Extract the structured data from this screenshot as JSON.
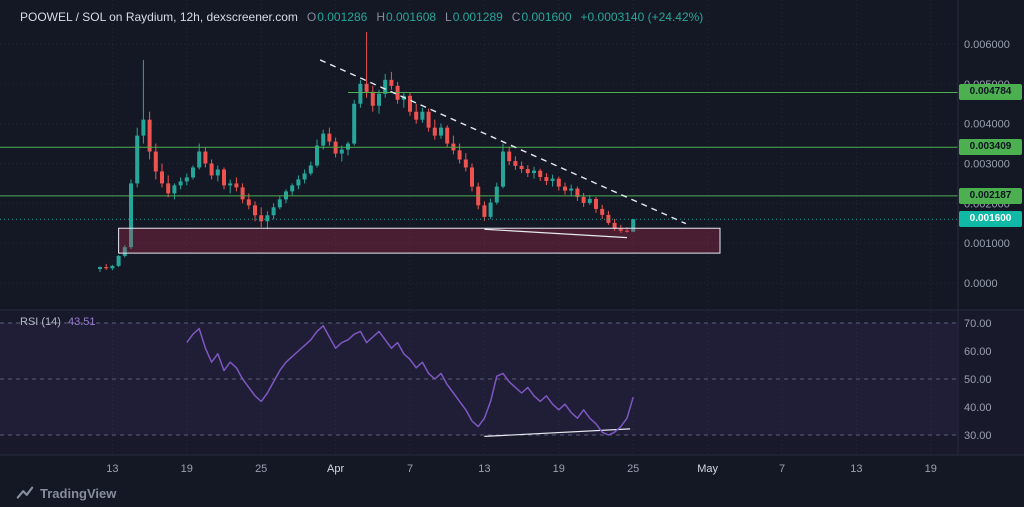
{
  "header": {
    "title": "POOWEL / SOL on Raydium, 12h, dexscreener.com",
    "ohlc": {
      "o_label": "O",
      "o": "0.001286",
      "h_label": "H",
      "h": "0.001608",
      "l_label": "L",
      "l": "0.001289",
      "c_label": "C",
      "c": "0.001600",
      "change": "+0.0003140 (+24.42%)"
    }
  },
  "rsi_header": {
    "label": "RSI (14)",
    "value": "43.51"
  },
  "branding": {
    "logo_text": "TradingView"
  },
  "colors": {
    "up": "#26a69a",
    "down": "#ef5350",
    "line_green": "#4caf50",
    "current_badge": "#10b8a6",
    "rsi_line": "#7e57c2",
    "rsi_value": "#9b7dd4",
    "drawing": "#e6e9f2",
    "box_fill": "rgba(199,48,84,0.30)",
    "grid": "rgba(154,164,190,0.10)",
    "axis_text": "#9aa0ad",
    "axis_text_major": "#d4d8e1",
    "separator": "#262b3b",
    "rsi_pane_tint": "rgba(126,87,194,0.05)",
    "rsi_band_fill": "rgba(126,87,194,0.07)",
    "rsi_level": "#5a5f78",
    "badge_text_dark": "#0e1420",
    "badge_text_light": "#ffffff",
    "ohlc_value": "#26a69a",
    "change": "#26a69a"
  },
  "chart_data": {
    "type": "candlestick",
    "title": "POOWEL / SOL on Raydium, 12h, dexscreener.com",
    "interval": "12h",
    "ylim": [
      0,
      0.0063
    ],
    "rsi_ylim": [
      30,
      70
    ],
    "price_axis_ticks": [
      {
        "label": "0.006000",
        "price": 0.006
      },
      {
        "label": "0.005000",
        "price": 0.005
      },
      {
        "label": "0.004000",
        "price": 0.004
      },
      {
        "label": "0.003000",
        "price": 0.003
      },
      {
        "label": "0.002000",
        "price": 0.002
      },
      {
        "label": "0.001000",
        "price": 0.001
      },
      {
        "label": "0.0000",
        "price": 0
      }
    ],
    "rsi_axis_ticks": [
      {
        "label": "70.00",
        "value": 70,
        "line": true
      },
      {
        "label": "60.00",
        "value": 60,
        "line": false
      },
      {
        "label": "50.00",
        "value": 50,
        "line": true
      },
      {
        "label": "40.00",
        "value": 40,
        "line": false
      },
      {
        "label": "30.00",
        "value": 30,
        "line": true
      }
    ],
    "time_axis_ticks": [
      {
        "label": "13",
        "index": 2,
        "major": false
      },
      {
        "label": "19",
        "index": 14,
        "major": false
      },
      {
        "label": "25",
        "index": 26,
        "major": false
      },
      {
        "label": "Apr",
        "index": 38,
        "major": true
      },
      {
        "label": "7",
        "index": 50,
        "major": false
      },
      {
        "label": "13",
        "index": 62,
        "major": false
      },
      {
        "label": "19",
        "index": 74,
        "major": false
      },
      {
        "label": "25",
        "index": 86,
        "major": false
      },
      {
        "label": "May",
        "index": 98,
        "major": true
      },
      {
        "label": "7",
        "index": 110,
        "major": false
      },
      {
        "label": "13",
        "index": 122,
        "major": false
      },
      {
        "label": "19",
        "index": 134,
        "major": false
      }
    ],
    "price_lines": [
      {
        "label": "0.004784",
        "price": 0.004784,
        "start_index": 40
      },
      {
        "label": "0.003409",
        "price": 0.003409,
        "start_index": null
      },
      {
        "label": "0.002187",
        "price": 0.002187,
        "start_index": null
      }
    ],
    "current_price": {
      "label": "0.001600",
      "price": 0.0016
    },
    "annotations": {
      "trendline": {
        "x1_index": 35.5,
        "y1_price": 0.0056,
        "x2_index": 94.5,
        "y2_price": 0.00149
      },
      "support_box": {
        "x1_index": 3,
        "x2_index": 100,
        "top_price": 0.001375,
        "bottom_price": 0.00075
      },
      "price_low_line": {
        "x1_index": 62,
        "y1_price": 0.00135,
        "x2_index": 85,
        "y2_price": 0.00114
      },
      "rsi_low_line": {
        "x1_index": 62,
        "y1_value": 29.5,
        "x2_index": 85.5,
        "y2_value": 32.2
      }
    },
    "candles": [
      [
        0.00035,
        0.00042,
        0.00028,
        0.0004
      ],
      [
        0.0004,
        0.00048,
        0.00033,
        0.00037
      ],
      [
        0.00037,
        0.00045,
        0.00032,
        0.00043
      ],
      [
        0.00043,
        0.0007,
        0.0004,
        0.00068
      ],
      [
        0.00068,
        0.00095,
        0.00064,
        0.0009
      ],
      [
        0.0009,
        0.0026,
        0.00085,
        0.0025
      ],
      [
        0.0025,
        0.0039,
        0.0024,
        0.0037
      ],
      [
        0.0037,
        0.0056,
        0.0035,
        0.0041
      ],
      [
        0.0041,
        0.0043,
        0.0031,
        0.0033
      ],
      [
        0.0033,
        0.0035,
        0.0026,
        0.0028
      ],
      [
        0.0028,
        0.003,
        0.0024,
        0.0025
      ],
      [
        0.0025,
        0.0027,
        0.00215,
        0.00225
      ],
      [
        0.00225,
        0.0025,
        0.0021,
        0.00245
      ],
      [
        0.00245,
        0.00265,
        0.00235,
        0.00255
      ],
      [
        0.00255,
        0.00275,
        0.00245,
        0.00265
      ],
      [
        0.00265,
        0.00295,
        0.0026,
        0.0029
      ],
      [
        0.0029,
        0.0035,
        0.00285,
        0.0033
      ],
      [
        0.0033,
        0.0034,
        0.0029,
        0.003
      ],
      [
        0.003,
        0.0031,
        0.0026,
        0.0027
      ],
      [
        0.0027,
        0.00295,
        0.00255,
        0.00285
      ],
      [
        0.00285,
        0.0029,
        0.00235,
        0.00245
      ],
      [
        0.00245,
        0.0026,
        0.00225,
        0.0025
      ],
      [
        0.0025,
        0.00265,
        0.0023,
        0.0024
      ],
      [
        0.0024,
        0.0025,
        0.002,
        0.0021
      ],
      [
        0.0021,
        0.00225,
        0.00185,
        0.00195
      ],
      [
        0.00195,
        0.00205,
        0.00155,
        0.0017
      ],
      [
        0.0017,
        0.0019,
        0.0014,
        0.00155
      ],
      [
        0.00155,
        0.0018,
        0.00135,
        0.0017
      ],
      [
        0.0017,
        0.002,
        0.0016,
        0.0019
      ],
      [
        0.0019,
        0.0022,
        0.00185,
        0.0021
      ],
      [
        0.0021,
        0.00235,
        0.002,
        0.0023
      ],
      [
        0.0023,
        0.0025,
        0.0022,
        0.00245
      ],
      [
        0.00245,
        0.0027,
        0.00235,
        0.0026
      ],
      [
        0.0026,
        0.00285,
        0.0025,
        0.00275
      ],
      [
        0.00275,
        0.00305,
        0.0027,
        0.00295
      ],
      [
        0.00295,
        0.0036,
        0.0029,
        0.00345
      ],
      [
        0.00345,
        0.00385,
        0.00335,
        0.00375
      ],
      [
        0.00375,
        0.0039,
        0.00345,
        0.00355
      ],
      [
        0.00355,
        0.00365,
        0.00315,
        0.00325
      ],
      [
        0.00325,
        0.00345,
        0.00305,
        0.00335
      ],
      [
        0.00335,
        0.00355,
        0.0032,
        0.0035
      ],
      [
        0.0035,
        0.0046,
        0.00345,
        0.0045
      ],
      [
        0.0045,
        0.0051,
        0.0044,
        0.005
      ],
      [
        0.005,
        0.0063,
        0.00465,
        0.0048
      ],
      [
        0.0048,
        0.00495,
        0.0043,
        0.00445
      ],
      [
        0.00445,
        0.00485,
        0.00425,
        0.00475
      ],
      [
        0.00475,
        0.00525,
        0.00465,
        0.0051
      ],
      [
        0.0051,
        0.0053,
        0.00485,
        0.00495
      ],
      [
        0.00495,
        0.00505,
        0.0045,
        0.0046
      ],
      [
        0.0046,
        0.0048,
        0.0044,
        0.0047
      ],
      [
        0.0047,
        0.00478,
        0.0042,
        0.0043
      ],
      [
        0.0043,
        0.0045,
        0.004,
        0.0041
      ],
      [
        0.0041,
        0.0044,
        0.00402,
        0.0043
      ],
      [
        0.0043,
        0.00438,
        0.0038,
        0.0039
      ],
      [
        0.0039,
        0.0041,
        0.0036,
        0.0037
      ],
      [
        0.0037,
        0.004,
        0.00362,
        0.0039
      ],
      [
        0.0039,
        0.00396,
        0.0034,
        0.0035
      ],
      [
        0.0035,
        0.0037,
        0.00323,
        0.00333
      ],
      [
        0.00333,
        0.0035,
        0.003,
        0.0031
      ],
      [
        0.0031,
        0.00326,
        0.0028,
        0.0029
      ],
      [
        0.0029,
        0.003,
        0.0023,
        0.00242
      ],
      [
        0.00242,
        0.00252,
        0.00185,
        0.00195
      ],
      [
        0.00195,
        0.00205,
        0.00156,
        0.00166
      ],
      [
        0.00166,
        0.00212,
        0.00161,
        0.00202
      ],
      [
        0.00202,
        0.00252,
        0.00197,
        0.00242
      ],
      [
        0.00242,
        0.0035,
        0.00238,
        0.0033
      ],
      [
        0.0033,
        0.00342,
        0.00296,
        0.00306
      ],
      [
        0.00306,
        0.00318,
        0.00284,
        0.00294
      ],
      [
        0.00294,
        0.00305,
        0.00276,
        0.00286
      ],
      [
        0.00286,
        0.00296,
        0.00266,
        0.00276
      ],
      [
        0.00276,
        0.00292,
        0.00262,
        0.00282
      ],
      [
        0.00282,
        0.00287,
        0.00256,
        0.00266
      ],
      [
        0.00266,
        0.00276,
        0.00246,
        0.00256
      ],
      [
        0.00256,
        0.00272,
        0.00242,
        0.00262
      ],
      [
        0.00262,
        0.00267,
        0.00232,
        0.00242
      ],
      [
        0.00242,
        0.00252,
        0.00222,
        0.00232
      ],
      [
        0.00232,
        0.00247,
        0.00217,
        0.00237
      ],
      [
        0.00237,
        0.00242,
        0.00206,
        0.00216
      ],
      [
        0.00216,
        0.00226,
        0.00191,
        0.00201
      ],
      [
        0.00201,
        0.00221,
        0.00196,
        0.00211
      ],
      [
        0.00211,
        0.00216,
        0.00176,
        0.00186
      ],
      [
        0.00186,
        0.00196,
        0.00161,
        0.00171
      ],
      [
        0.00171,
        0.00181,
        0.00146,
        0.00151
      ],
      [
        0.00151,
        0.00161,
        0.00131,
        0.00136
      ],
      [
        0.00136,
        0.00146,
        0.00126,
        0.00131
      ],
      [
        0.00131,
        0.0014,
        0.00127,
        0.001286
      ],
      [
        0.001286,
        0.001608,
        0.001289,
        0.0016
      ]
    ],
    "rsi": {
      "start_index": 14,
      "values": [
        63,
        66,
        68,
        61,
        56,
        59,
        53,
        56,
        54,
        50,
        47,
        44,
        42,
        45,
        49,
        53,
        56,
        58,
        60,
        62,
        64,
        67,
        69,
        65,
        61,
        63,
        64,
        66,
        67,
        63,
        65,
        67,
        64,
        61,
        63,
        59,
        57,
        54,
        56,
        52,
        50,
        52,
        48,
        45,
        42,
        39,
        35,
        33,
        36,
        42,
        51,
        52,
        49,
        47,
        45,
        47,
        44,
        42,
        44,
        41,
        39,
        41,
        38,
        36,
        39,
        36,
        34,
        31,
        30,
        31,
        33,
        36,
        43.5
      ]
    }
  }
}
